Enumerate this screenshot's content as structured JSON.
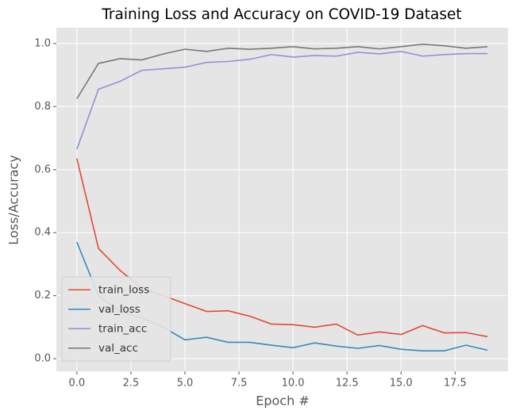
{
  "chart_data": {
    "type": "line",
    "title": "Training Loss and Accuracy on COVID-19 Dataset",
    "x_label": "Epoch #",
    "y_label": "Loss/Accuracy",
    "x": [
      0,
      1,
      2,
      3,
      4,
      5,
      6,
      7,
      8,
      9,
      10,
      11,
      12,
      13,
      14,
      15,
      16,
      17,
      18,
      19
    ],
    "series": [
      {
        "name": "train_loss",
        "color": "#E24A33",
        "values": [
          0.635,
          0.35,
          0.28,
          0.225,
          0.2,
          0.175,
          0.15,
          0.152,
          0.135,
          0.11,
          0.108,
          0.1,
          0.11,
          0.075,
          0.085,
          0.077,
          0.105,
          0.082,
          0.083,
          0.07
        ]
      },
      {
        "name": "val_loss",
        "color": "#348ABD",
        "values": [
          0.37,
          0.2,
          0.15,
          0.13,
          0.1,
          0.06,
          0.068,
          0.052,
          0.052,
          0.043,
          0.035,
          0.05,
          0.04,
          0.033,
          0.042,
          0.03,
          0.025,
          0.025,
          0.043,
          0.027
        ]
      },
      {
        "name": "train_acc",
        "color": "#988ED5",
        "values": [
          0.665,
          0.855,
          0.88,
          0.915,
          0.92,
          0.925,
          0.94,
          0.943,
          0.95,
          0.965,
          0.957,
          0.962,
          0.96,
          0.972,
          0.967,
          0.975,
          0.96,
          0.965,
          0.968,
          0.968
        ]
      },
      {
        "name": "val_acc",
        "color": "#777777",
        "values": [
          0.825,
          0.937,
          0.952,
          0.948,
          0.967,
          0.982,
          0.975,
          0.985,
          0.982,
          0.985,
          0.99,
          0.983,
          0.985,
          0.99,
          0.983,
          0.99,
          0.998,
          0.993,
          0.985,
          0.99
        ]
      }
    ],
    "xlim": [
      -0.95,
      19.95
    ],
    "xticks": [
      {
        "value": 0,
        "label": "0.0"
      },
      2.5,
      {
        "value": 5,
        "label": "5.0"
      },
      7.5,
      {
        "value": 10,
        "label": "10.0"
      },
      12.5,
      {
        "value": 15,
        "label": "15.0"
      },
      17.5
    ],
    "ylim": [
      -0.04,
      1.05
    ],
    "yticks": [
      {
        "value": 0,
        "label": "0.0"
      },
      0.2,
      0.4,
      0.6,
      0.8,
      {
        "value": 1,
        "label": "1.0"
      }
    ],
    "grid": true,
    "legend": "lower left"
  }
}
